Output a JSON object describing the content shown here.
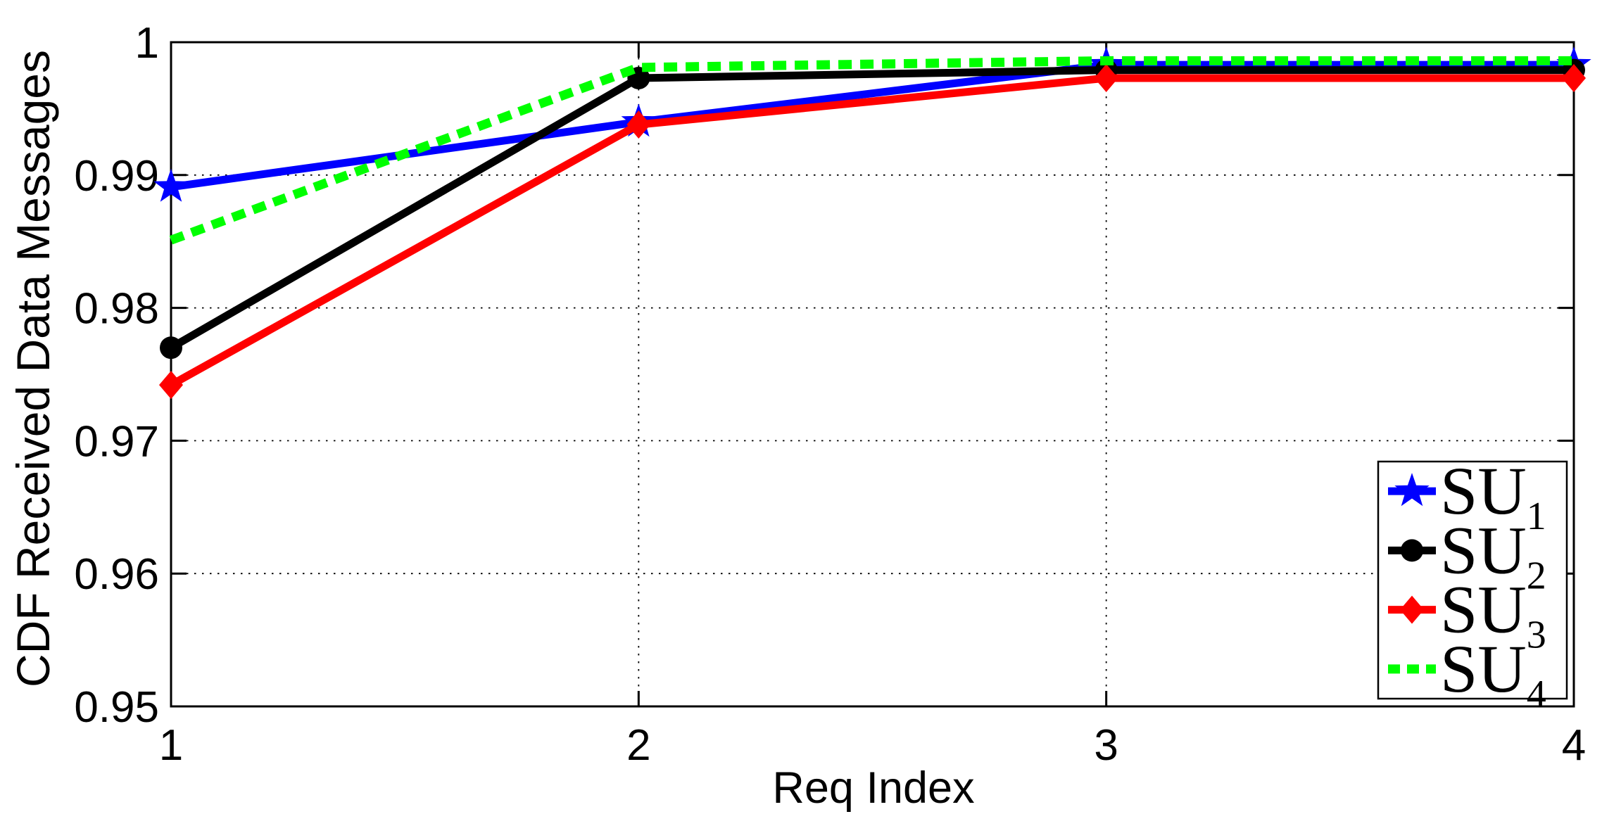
{
  "chart_data": {
    "type": "line",
    "title": "",
    "xlabel": "Req Index",
    "ylabel": "CDF Received Data Messages",
    "x": [
      1,
      2,
      3,
      4
    ],
    "xlim": [
      1,
      4
    ],
    "ylim": [
      0.95,
      1.0
    ],
    "xticks": [
      1,
      2,
      3,
      4
    ],
    "xtick_labels": [
      "1",
      "2",
      "3",
      "4"
    ],
    "yticks": [
      0.95,
      0.96,
      0.97,
      0.98,
      0.99,
      1.0
    ],
    "ytick_labels": [
      "0.95",
      "0.96",
      "0.97",
      "0.98",
      "0.99",
      "1"
    ],
    "grid": true,
    "legend_position": "lower right",
    "series": [
      {
        "label": "SU",
        "sub": "1",
        "color": "#0000ff",
        "line": "solid",
        "marker": "star",
        "values": [
          0.9891,
          0.994,
          0.9983,
          0.9983
        ]
      },
      {
        "label": "SU",
        "sub": "2",
        "color": "#000000",
        "line": "solid",
        "marker": "circle",
        "values": [
          0.977,
          0.9973,
          0.9979,
          0.9979
        ]
      },
      {
        "label": "SU",
        "sub": "3",
        "color": "#ff0000",
        "line": "solid",
        "marker": "diamond",
        "values": [
          0.9742,
          0.9938,
          0.9973,
          0.9973
        ]
      },
      {
        "label": "SU",
        "sub": "4",
        "color": "#00ff00",
        "line": "dashed",
        "marker": "none",
        "values": [
          0.9851,
          0.9981,
          0.9986,
          0.9986
        ]
      }
    ]
  }
}
